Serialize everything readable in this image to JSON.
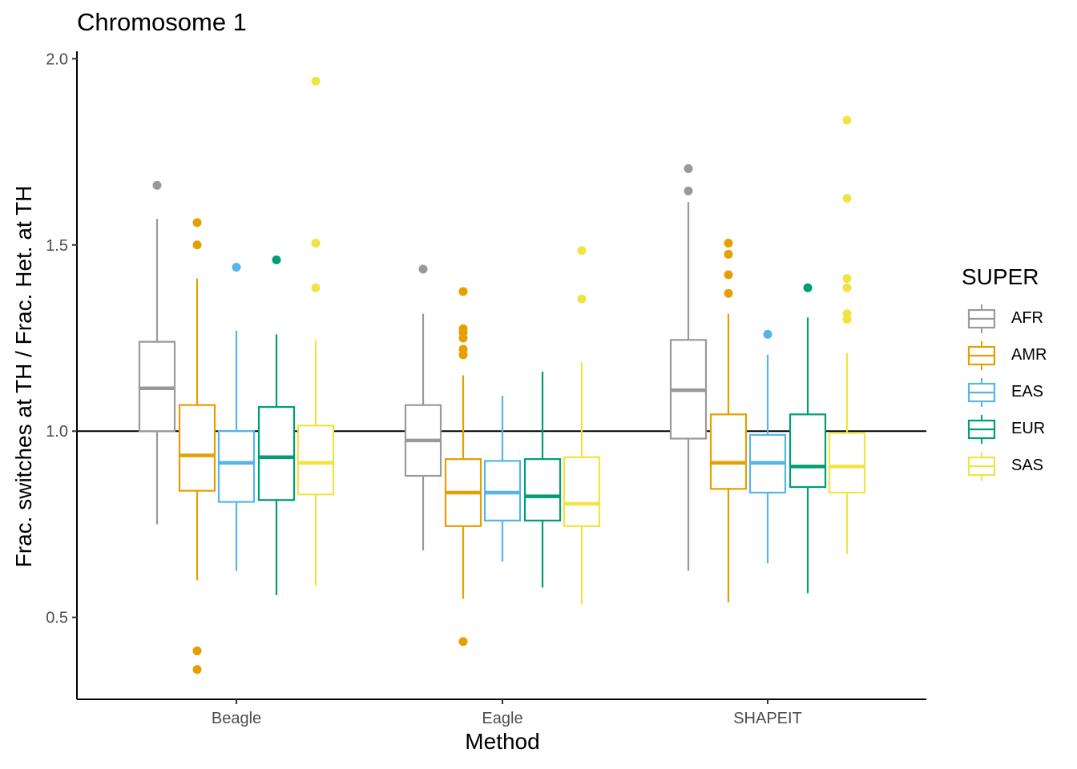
{
  "chart_data": {
    "type": "boxplot",
    "title": "Chromosome 1",
    "xlabel": "Method",
    "ylabel": "Frac. switches at TH / Frac. Het. at TH",
    "ylim": [
      0.28,
      2.02
    ],
    "yticks": [
      0.5,
      1.0,
      1.5,
      2.0
    ],
    "ytick_labels": [
      "0.5",
      "1.0",
      "1.5",
      "2.0"
    ],
    "reference_line": 1.0,
    "categories": [
      "Beagle",
      "Eagle",
      "SHAPEIT"
    ],
    "legend": {
      "title": "SUPER",
      "placement": "right",
      "items": [
        {
          "name": "AFR",
          "color": "#999999"
        },
        {
          "name": "AMR",
          "color": "#E69F00"
        },
        {
          "name": "EAS",
          "color": "#56B4E9"
        },
        {
          "name": "EUR",
          "color": "#009E73"
        },
        {
          "name": "SAS",
          "color": "#F0E442"
        }
      ]
    },
    "boxes": [
      {
        "method": "Beagle",
        "group": "AFR",
        "min": 0.75,
        "q1": 1.0,
        "median": 1.115,
        "q3": 1.24,
        "max": 1.57,
        "outliers": [
          1.66
        ]
      },
      {
        "method": "Beagle",
        "group": "AMR",
        "min": 0.6,
        "q1": 0.84,
        "median": 0.935,
        "q3": 1.07,
        "max": 1.41,
        "outliers": [
          1.56,
          1.5,
          0.41,
          0.36
        ]
      },
      {
        "method": "Beagle",
        "group": "EAS",
        "min": 0.625,
        "q1": 0.81,
        "median": 0.915,
        "q3": 1.0,
        "max": 1.27,
        "outliers": [
          1.44
        ]
      },
      {
        "method": "Beagle",
        "group": "EUR",
        "min": 0.56,
        "q1": 0.815,
        "median": 0.93,
        "q3": 1.065,
        "max": 1.26,
        "outliers": [
          1.46
        ]
      },
      {
        "method": "Beagle",
        "group": "SAS",
        "min": 0.585,
        "q1": 0.83,
        "median": 0.915,
        "q3": 1.015,
        "max": 1.245,
        "outliers": [
          1.94,
          1.505,
          1.385
        ]
      },
      {
        "method": "Eagle",
        "group": "AFR",
        "min": 0.68,
        "q1": 0.88,
        "median": 0.975,
        "q3": 1.07,
        "max": 1.315,
        "outliers": [
          1.435
        ]
      },
      {
        "method": "Eagle",
        "group": "AMR",
        "min": 0.55,
        "q1": 0.745,
        "median": 0.835,
        "q3": 0.925,
        "max": 1.15,
        "outliers": [
          1.375,
          1.275,
          1.265,
          1.25,
          1.22,
          1.205,
          0.435
        ]
      },
      {
        "method": "Eagle",
        "group": "EAS",
        "min": 0.65,
        "q1": 0.76,
        "median": 0.835,
        "q3": 0.92,
        "max": 1.095,
        "outliers": []
      },
      {
        "method": "Eagle",
        "group": "EUR",
        "min": 0.58,
        "q1": 0.76,
        "median": 0.825,
        "q3": 0.925,
        "max": 1.16,
        "outliers": []
      },
      {
        "method": "Eagle",
        "group": "SAS",
        "min": 0.535,
        "q1": 0.745,
        "median": 0.805,
        "q3": 0.93,
        "max": 1.185,
        "outliers": [
          1.485,
          1.355
        ]
      },
      {
        "method": "SHAPEIT",
        "group": "AFR",
        "min": 0.625,
        "q1": 0.98,
        "median": 1.11,
        "q3": 1.245,
        "max": 1.615,
        "outliers": [
          1.705,
          1.645
        ]
      },
      {
        "method": "SHAPEIT",
        "group": "AMR",
        "min": 0.54,
        "q1": 0.845,
        "median": 0.915,
        "q3": 1.045,
        "max": 1.315,
        "outliers": [
          1.505,
          1.475,
          1.42,
          1.37
        ]
      },
      {
        "method": "SHAPEIT",
        "group": "EAS",
        "min": 0.645,
        "q1": 0.835,
        "median": 0.915,
        "q3": 0.99,
        "max": 1.205,
        "outliers": [
          1.26
        ]
      },
      {
        "method": "SHAPEIT",
        "group": "EUR",
        "min": 0.565,
        "q1": 0.85,
        "median": 0.905,
        "q3": 1.045,
        "max": 1.305,
        "outliers": [
          1.385
        ]
      },
      {
        "method": "SHAPEIT",
        "group": "SAS",
        "min": 0.67,
        "q1": 0.835,
        "median": 0.905,
        "q3": 0.995,
        "max": 1.21,
        "outliers": [
          1.835,
          1.625,
          1.41,
          1.385,
          1.315,
          1.3
        ]
      }
    ]
  }
}
